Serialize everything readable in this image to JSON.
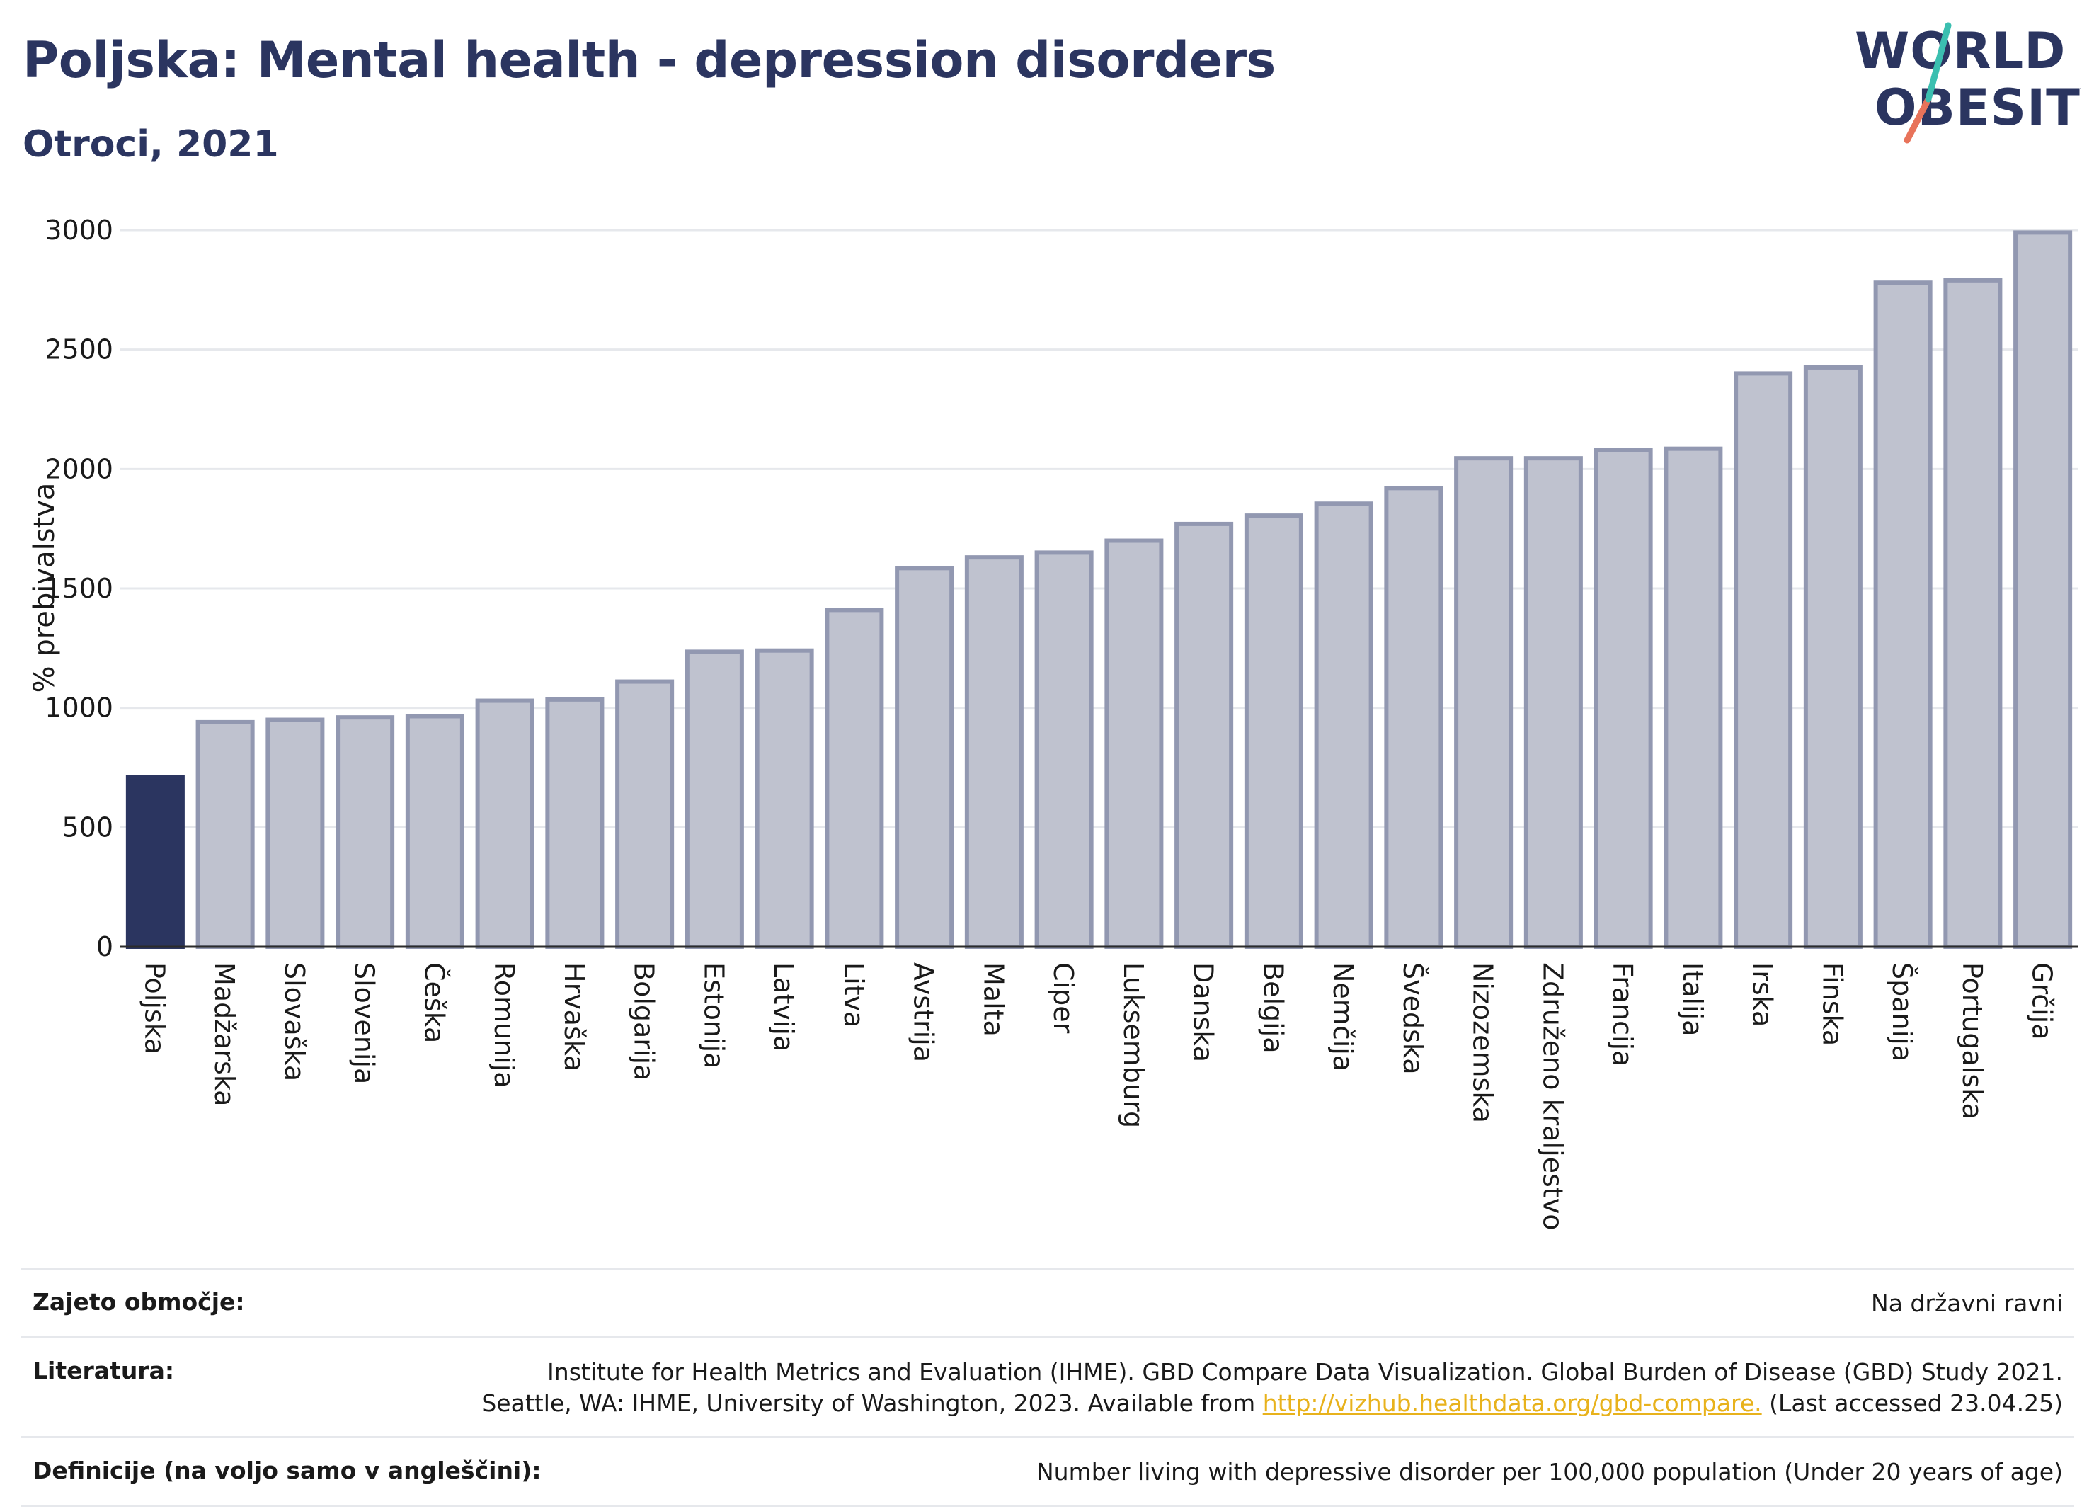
{
  "header": {
    "title": "Poljska: Mental health - depression disorders",
    "subtitle": "Otroci, 2021"
  },
  "logo": {
    "line1": "WORLD",
    "line2": "OBESITY",
    "accent_colors": [
      "#3bbfb0",
      "#e8735a"
    ]
  },
  "colors": {
    "highlight": "#2b3560",
    "bar_fill": "#bfc2cf",
    "bar_stroke": "#9298b1",
    "grid": "#e6e8ec",
    "link": "#e8b21c"
  },
  "chart_data": {
    "type": "bar",
    "ylabel": "% prebivalstva",
    "ylim": [
      0,
      3000
    ],
    "yticks": [
      0,
      500,
      1000,
      1500,
      2000,
      2500,
      3000
    ],
    "grid": true,
    "highlight": "Poljska",
    "categories": [
      "Poljska",
      "Madžarska",
      "Slovaška",
      "Slovenija",
      "Češka",
      "Romunija",
      "Hrvaška",
      "Bolgarija",
      "Estonija",
      "Latvija",
      "Litva",
      "Avstrija",
      "Malta",
      "Ciper",
      "Luksemburg",
      "Danska",
      "Belgija",
      "Nemčija",
      "Švedska",
      "Nizozemska",
      "Združeno kraljestvo",
      "Francija",
      "Italija",
      "Irska",
      "Finska",
      "Španija",
      "Portugalska",
      "Grčija"
    ],
    "values": [
      710,
      940,
      950,
      960,
      965,
      1030,
      1035,
      1110,
      1235,
      1240,
      1410,
      1585,
      1630,
      1650,
      1700,
      1770,
      1805,
      1855,
      1920,
      2045,
      2045,
      2080,
      2085,
      2400,
      2425,
      2780,
      2790,
      2990
    ]
  },
  "footer": {
    "rows": [
      {
        "key": "Zajeto območje:",
        "value_lines": [
          "Na državni ravni"
        ]
      },
      {
        "key": "Literatura:",
        "value_lines": [
          "Institute for Health Metrics and Evaluation (IHME). GBD Compare Data Visualization. Global Burden of Disease (GBD) Study 2021."
        ],
        "line2_prefix": "Seattle, WA: IHME, University of Washington, 2023. Available from ",
        "link": "http://vizhub.healthdata.org/gbd-compare.",
        "line2_suffix": " (Last accessed 23.04.25)"
      },
      {
        "key": "Definicije (na voljo samo v angleščini):",
        "value_lines": [
          "Number living with depressive disorder per 100,000 population (Under 20 years of age)"
        ]
      }
    ]
  }
}
